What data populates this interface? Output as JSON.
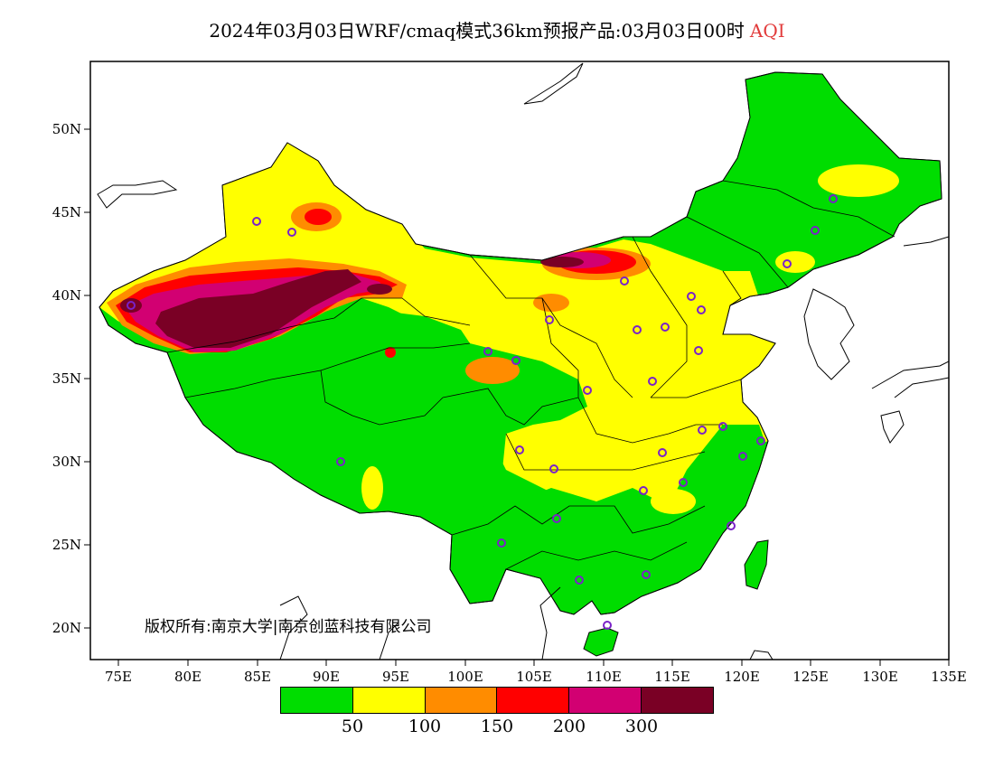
{
  "title": {
    "text": "2024年03月03日WRF/cmaq模式36km预报产品:03月03日00时",
    "variable": "AQI"
  },
  "axes": {
    "y_ticks": [
      "50N",
      "45N",
      "40N",
      "35N",
      "30N",
      "25N",
      "20N"
    ],
    "x_ticks": [
      "75E",
      "80E",
      "85E",
      "90E",
      "95E",
      "100E",
      "105E",
      "110E",
      "115E",
      "120E",
      "125E",
      "130E",
      "135E"
    ]
  },
  "copyright": "版权所有:南京大学|南京创蓝科技有限公司",
  "legend": {
    "colors": [
      "#00dd00",
      "#ffff00",
      "#ff8c00",
      "#ff0000",
      "#d20072",
      "#7a0025"
    ],
    "labels": [
      "50",
      "100",
      "150",
      "200",
      "300"
    ]
  },
  "colors": {
    "ocean": "#ffffff",
    "frame": "#000000"
  }
}
